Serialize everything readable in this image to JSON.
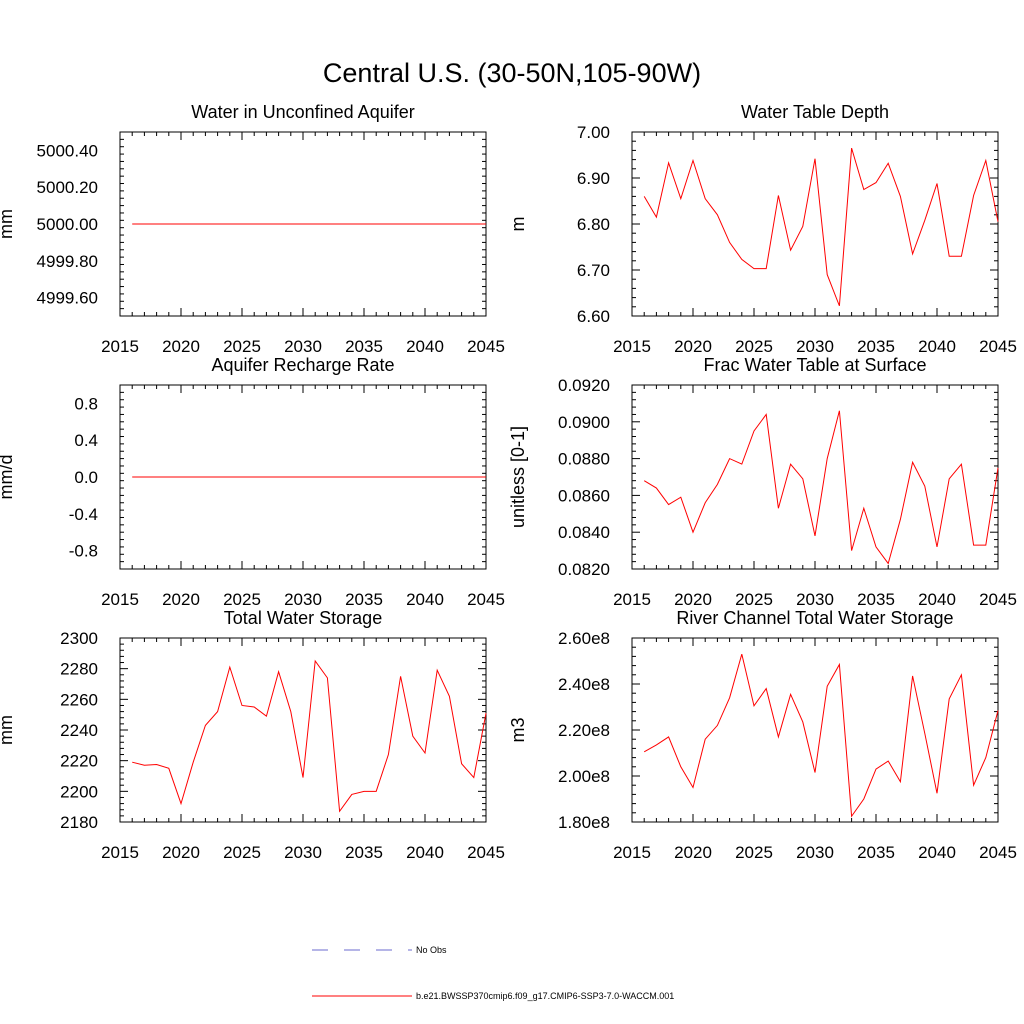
{
  "figure_title": "Central U.S. (30-50N,105-90W)",
  "legend": {
    "obs_label": "No Obs",
    "obs_color": "#6b6bcf",
    "model_label": "b.e21.BWSSP370cmip6.f09_g17.CMIP6-SSP3-7.0-WACCM.001",
    "model_color": "#ff0000"
  },
  "chart_data": [
    {
      "type": "line",
      "title": "Water in Unconfined Aquifer",
      "ylabel": "mm",
      "xlim": [
        2015,
        2045
      ],
      "ylim": [
        4999.5,
        5000.5
      ],
      "xticks": [
        "2015",
        "2020",
        "2025",
        "2030",
        "2035",
        "2040",
        "2045"
      ],
      "yticks": [
        "4999.60",
        "4999.80",
        "5000.00",
        "5000.20",
        "5000.40"
      ],
      "x": [
        2016,
        2017,
        2018,
        2019,
        2020,
        2021,
        2022,
        2023,
        2024,
        2025,
        2026,
        2027,
        2028,
        2029,
        2030,
        2031,
        2032,
        2033,
        2034,
        2035,
        2036,
        2037,
        2038,
        2039,
        2040,
        2041,
        2042,
        2043,
        2044,
        2045
      ],
      "values": [
        5000,
        5000,
        5000,
        5000,
        5000,
        5000,
        5000,
        5000,
        5000,
        5000,
        5000,
        5000,
        5000,
        5000,
        5000,
        5000,
        5000,
        5000,
        5000,
        5000,
        5000,
        5000,
        5000,
        5000,
        5000,
        5000,
        5000,
        5000,
        5000,
        5000
      ]
    },
    {
      "type": "line",
      "title": "Water Table Depth",
      "ylabel": "m",
      "xlim": [
        2015,
        2045
      ],
      "ylim": [
        6.6,
        7.0
      ],
      "xticks": [
        "2015",
        "2020",
        "2025",
        "2030",
        "2035",
        "2040",
        "2045"
      ],
      "yticks": [
        "6.60",
        "6.70",
        "6.80",
        "6.90",
        "7.00"
      ],
      "x": [
        2016,
        2017,
        2018,
        2019,
        2020,
        2021,
        2022,
        2023,
        2024,
        2025,
        2026,
        2027,
        2028,
        2029,
        2030,
        2031,
        2032,
        2033,
        2034,
        2035,
        2036,
        2037,
        2038,
        2039,
        2040,
        2041,
        2042,
        2043,
        2044,
        2045
      ],
      "values": [
        6.86,
        6.815,
        6.933,
        6.855,
        6.938,
        6.855,
        6.82,
        6.76,
        6.723,
        6.703,
        6.703,
        6.862,
        6.743,
        6.795,
        6.942,
        6.69,
        6.622,
        6.965,
        6.875,
        6.89,
        6.932,
        6.86,
        6.735,
        6.808,
        6.888,
        6.73,
        6.73,
        6.862,
        6.938,
        6.805
      ]
    },
    {
      "type": "line",
      "title": "Aquifer Recharge Rate",
      "ylabel": "mm/d",
      "xlim": [
        2015,
        2045
      ],
      "ylim": [
        -1.0,
        1.0
      ],
      "xticks": [
        "2015",
        "2020",
        "2025",
        "2030",
        "2035",
        "2040",
        "2045"
      ],
      "yticks": [
        "-0.8",
        "-0.4",
        "0.0",
        "0.4",
        "0.8"
      ],
      "x": [
        2016,
        2017,
        2018,
        2019,
        2020,
        2021,
        2022,
        2023,
        2024,
        2025,
        2026,
        2027,
        2028,
        2029,
        2030,
        2031,
        2032,
        2033,
        2034,
        2035,
        2036,
        2037,
        2038,
        2039,
        2040,
        2041,
        2042,
        2043,
        2044,
        2045
      ],
      "values": [
        0,
        0,
        0,
        0,
        0,
        0,
        0,
        0,
        0,
        0,
        0,
        0,
        0,
        0,
        0,
        0,
        0,
        0,
        0,
        0,
        0,
        0,
        0,
        0,
        0,
        0,
        0,
        0,
        0,
        0
      ]
    },
    {
      "type": "line",
      "title": "Frac Water Table at Surface",
      "ylabel": "unitless [0-1]",
      "xlim": [
        2015,
        2045
      ],
      "ylim": [
        0.082,
        0.092
      ],
      "xticks": [
        "2015",
        "2020",
        "2025",
        "2030",
        "2035",
        "2040",
        "2045"
      ],
      "yticks": [
        "0.0820",
        "0.0840",
        "0.0860",
        "0.0880",
        "0.0900",
        "0.0920"
      ],
      "x": [
        2016,
        2017,
        2018,
        2019,
        2020,
        2021,
        2022,
        2023,
        2024,
        2025,
        2026,
        2027,
        2028,
        2029,
        2030,
        2031,
        2032,
        2033,
        2034,
        2035,
        2036,
        2037,
        2038,
        2039,
        2040,
        2041,
        2042,
        2043,
        2044,
        2045
      ],
      "values": [
        0.0868,
        0.0864,
        0.0855,
        0.0859,
        0.084,
        0.0856,
        0.0866,
        0.088,
        0.0877,
        0.0895,
        0.0904,
        0.0853,
        0.0877,
        0.0869,
        0.0838,
        0.088,
        0.0906,
        0.083,
        0.0853,
        0.0832,
        0.0823,
        0.0847,
        0.0878,
        0.0865,
        0.0832,
        0.0869,
        0.0877,
        0.0833,
        0.0833,
        0.0875
      ]
    },
    {
      "type": "line",
      "title": "Total Water Storage",
      "ylabel": "mm",
      "xlim": [
        2015,
        2045
      ],
      "ylim": [
        2180,
        2300
      ],
      "xticks": [
        "2015",
        "2020",
        "2025",
        "2030",
        "2035",
        "2040",
        "2045"
      ],
      "yticks": [
        "2180",
        "2200",
        "2220",
        "2240",
        "2260",
        "2280",
        "2300"
      ],
      "x": [
        2016,
        2017,
        2018,
        2019,
        2020,
        2021,
        2022,
        2023,
        2024,
        2025,
        2026,
        2027,
        2028,
        2029,
        2030,
        2031,
        2032,
        2033,
        2034,
        2035,
        2036,
        2037,
        2038,
        2039,
        2040,
        2041,
        2042,
        2043,
        2044,
        2045
      ],
      "values": [
        2219,
        2217,
        2217.5,
        2215,
        2192,
        2219,
        2243,
        2252,
        2281,
        2256,
        2255,
        2249,
        2278,
        2252,
        2209,
        2285,
        2274,
        2187,
        2198,
        2200,
        2200,
        2224,
        2275,
        2236,
        2225,
        2279,
        2262,
        2218,
        2209,
        2251
      ]
    },
    {
      "type": "line",
      "title": "River Channel Total Water Storage",
      "ylabel": "m3",
      "xlim": [
        2015,
        2045
      ],
      "ylim": [
        180000000,
        260000000
      ],
      "xticks": [
        "2015",
        "2020",
        "2025",
        "2030",
        "2035",
        "2040",
        "2045"
      ],
      "yticks": [
        "1.80e8",
        "2.00e8",
        "2.20e8",
        "2.40e8",
        "2.60e8"
      ],
      "x": [
        2016,
        2017,
        2018,
        2019,
        2020,
        2021,
        2022,
        2023,
        2024,
        2025,
        2026,
        2027,
        2028,
        2029,
        2030,
        2031,
        2032,
        2033,
        2034,
        2035,
        2036,
        2037,
        2038,
        2039,
        2040,
        2041,
        2042,
        2043,
        2044,
        2045
      ],
      "values": [
        210500000,
        213500000,
        217000000,
        204000000,
        195000000,
        216000000,
        222000000,
        234000000,
        253000000,
        230500000,
        238000000,
        217000000,
        235500000,
        223500000,
        201500000,
        239000000,
        248500000,
        182500000,
        190000000,
        203000000,
        206500000,
        197500000,
        243500000,
        218500000,
        192500000,
        233500000,
        244000000,
        196000000,
        208000000,
        228500000
      ]
    }
  ]
}
